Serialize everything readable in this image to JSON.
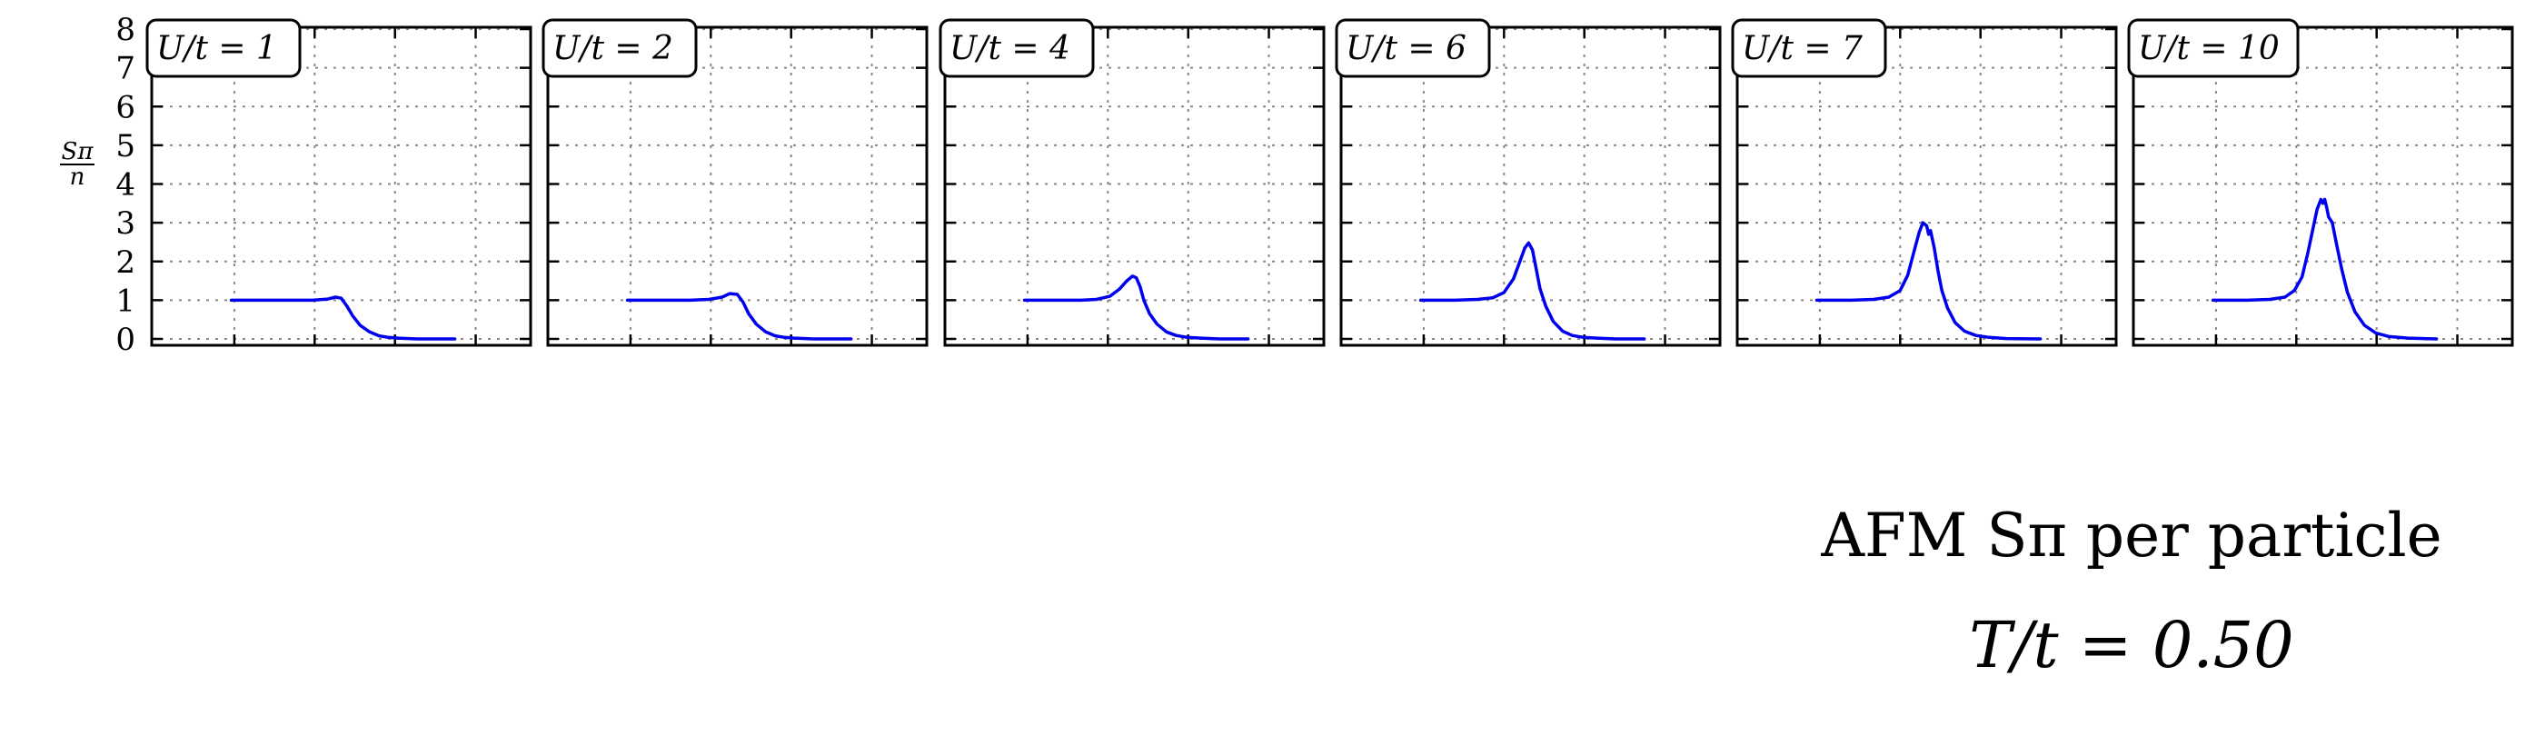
{
  "chart_data": {
    "type": "line",
    "layout": "six side-by-side panels sharing the y axis",
    "ylabel_numerator": "Sπ",
    "ylabel_denominator": "n",
    "ylim": [
      0,
      8
    ],
    "yticks": [
      "0",
      "1",
      "2",
      "3",
      "4",
      "5",
      "6",
      "7",
      "8"
    ],
    "xlim": [
      -1.0,
      1.0
    ],
    "x_tick_labels_shown": false,
    "grid": true,
    "line_color": "#0000ee",
    "caption_line1": "AFM Sπ per particle",
    "caption_line2": "T/t = 0.50",
    "panels": [
      {
        "label": "U/t = 1",
        "x": [
          -0.58,
          -0.4,
          -0.25,
          -0.15,
          -0.07,
          -0.03,
          0.0,
          0.03,
          0.06,
          0.1,
          0.15,
          0.2,
          0.25,
          0.3,
          0.4,
          0.5,
          0.6
        ],
        "y": [
          1.0,
          1.0,
          1.0,
          1.0,
          1.03,
          1.08,
          1.05,
          0.85,
          0.6,
          0.35,
          0.18,
          0.08,
          0.04,
          0.02,
          0.0,
          0.0,
          0.0
        ]
      },
      {
        "label": "U/t = 2",
        "x": [
          -0.58,
          -0.4,
          -0.25,
          -0.15,
          -0.08,
          -0.04,
          0.0,
          0.03,
          0.06,
          0.1,
          0.15,
          0.2,
          0.25,
          0.3,
          0.4,
          0.5,
          0.6
        ],
        "y": [
          1.0,
          1.0,
          1.0,
          1.02,
          1.08,
          1.17,
          1.15,
          0.95,
          0.65,
          0.38,
          0.18,
          0.08,
          0.04,
          0.02,
          0.0,
          0.0,
          0.0
        ]
      },
      {
        "label": "U/t = 4",
        "x": [
          -0.58,
          -0.4,
          -0.28,
          -0.2,
          -0.13,
          -0.08,
          -0.04,
          -0.01,
          0.01,
          0.03,
          0.05,
          0.08,
          0.12,
          0.17,
          0.22,
          0.28,
          0.35,
          0.45,
          0.6
        ],
        "y": [
          1.0,
          1.0,
          1.0,
          1.02,
          1.1,
          1.28,
          1.5,
          1.62,
          1.58,
          1.35,
          1.0,
          0.65,
          0.38,
          0.18,
          0.09,
          0.04,
          0.02,
          0.0,
          0.0
        ]
      },
      {
        "label": "U/t = 6",
        "x": [
          -0.58,
          -0.4,
          -0.28,
          -0.2,
          -0.14,
          -0.09,
          -0.06,
          -0.03,
          -0.01,
          0.01,
          0.03,
          0.05,
          0.08,
          0.12,
          0.17,
          0.22,
          0.28,
          0.35,
          0.45,
          0.6
        ],
        "y": [
          1.0,
          1.0,
          1.02,
          1.06,
          1.2,
          1.55,
          1.95,
          2.35,
          2.48,
          2.3,
          1.8,
          1.3,
          0.85,
          0.45,
          0.2,
          0.09,
          0.04,
          0.02,
          0.0,
          0.0
        ]
      },
      {
        "label": "U/t = 7",
        "x": [
          -0.58,
          -0.4,
          -0.28,
          -0.2,
          -0.14,
          -0.1,
          -0.07,
          -0.04,
          -0.02,
          0.0,
          0.01,
          0.02,
          0.04,
          0.06,
          0.08,
          0.11,
          0.15,
          0.2,
          0.26,
          0.33,
          0.42,
          0.6
        ],
        "y": [
          1.0,
          1.0,
          1.02,
          1.08,
          1.25,
          1.65,
          2.2,
          2.75,
          3.0,
          2.92,
          2.7,
          2.8,
          2.35,
          1.75,
          1.25,
          0.8,
          0.42,
          0.2,
          0.09,
          0.04,
          0.01,
          0.0
        ]
      },
      {
        "label": "U/t = 10",
        "x": [
          -0.58,
          -0.4,
          -0.28,
          -0.2,
          -0.15,
          -0.11,
          -0.08,
          -0.05,
          -0.03,
          -0.01,
          0.0,
          0.01,
          0.02,
          0.03,
          0.05,
          0.07,
          0.1,
          0.13,
          0.17,
          0.22,
          0.28,
          0.35,
          0.45,
          0.6
        ],
        "y": [
          1.0,
          1.0,
          1.02,
          1.08,
          1.25,
          1.6,
          2.2,
          2.9,
          3.35,
          3.6,
          3.5,
          3.6,
          3.4,
          3.15,
          3.0,
          2.5,
          1.8,
          1.2,
          0.7,
          0.35,
          0.15,
          0.06,
          0.02,
          0.0
        ]
      }
    ]
  }
}
